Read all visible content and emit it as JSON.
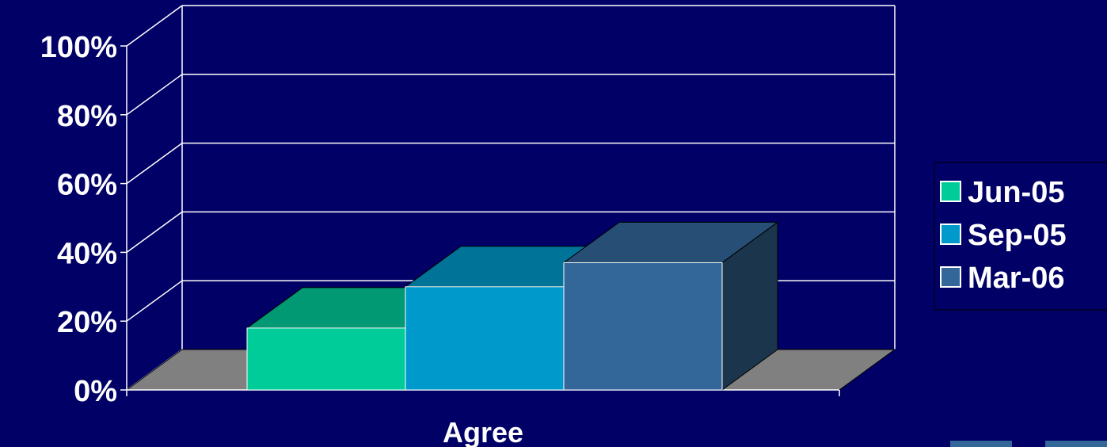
{
  "chart_data": {
    "type": "bar",
    "title": "",
    "xlabel": "",
    "ylabel": "",
    "categories": [
      "Agree"
    ],
    "series": [
      {
        "name": "Jun-05",
        "values": [
          18
        ]
      },
      {
        "name": "Sep-05",
        "values": [
          30
        ]
      },
      {
        "name": "Mar-06",
        "values": [
          37
        ]
      }
    ],
    "y_ticks": [
      "0%",
      "20%",
      "40%",
      "60%",
      "80%",
      "100%"
    ],
    "ylim": [
      0,
      100
    ],
    "grid": true,
    "legend": "right",
    "three_d": true
  },
  "colors": {
    "background": "#000066",
    "floor": "#808080",
    "gridline": "#ffffff",
    "series_front": [
      "#00cc99",
      "#0099cc",
      "#336699"
    ],
    "series_top": [
      "#009973",
      "#007399",
      "#274e74"
    ],
    "series_side": [
      "#007356",
      "#005673",
      "#1b354d"
    ]
  }
}
